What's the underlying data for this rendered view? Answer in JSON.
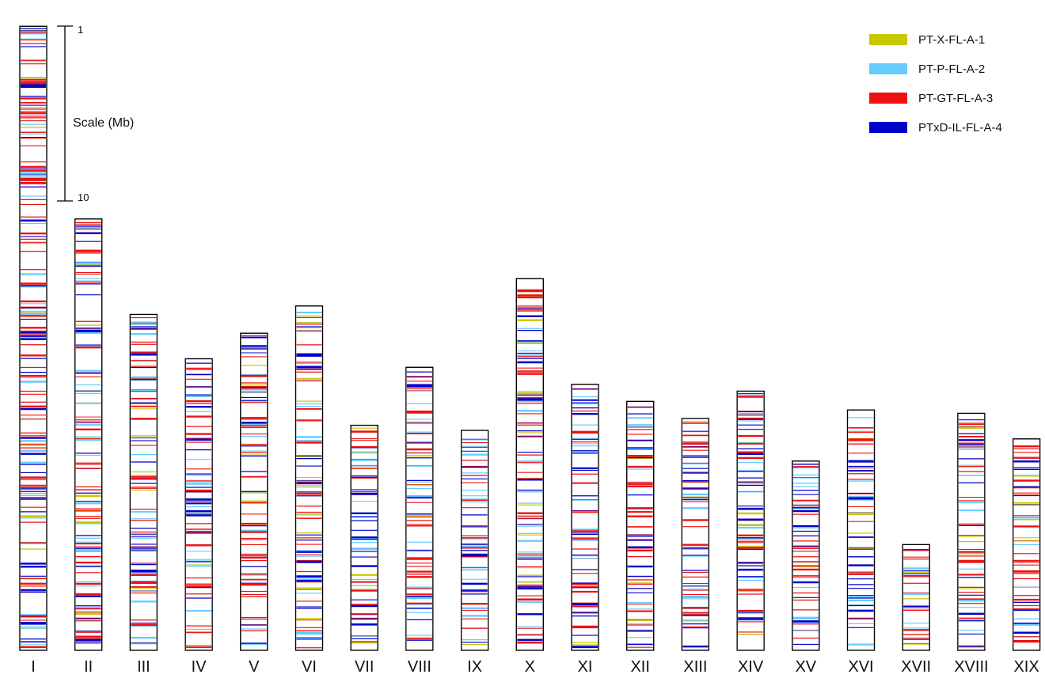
{
  "scale": {
    "top_label": "1",
    "bottom_label": "10",
    "title": "Scale (Mb)"
  },
  "legend": [
    {
      "label": "PT-X-FL-A-1",
      "color": "#c8c800"
    },
    {
      "label": "PT-P-FL-A-2",
      "color": "#66ccff"
    },
    {
      "label": "PT-GT-FL-A-3",
      "color": "#ee1111"
    },
    {
      "label": "PTxD-IL-FL-A-4",
      "color": "#0000cc"
    }
  ],
  "chromosomes": [
    {
      "name": "I",
      "length_mb": 36.6
    },
    {
      "name": "II",
      "length_mb": 25.3
    },
    {
      "name": "III",
      "length_mb": 19.7
    },
    {
      "name": "IV",
      "length_mb": 17.1
    },
    {
      "name": "V",
      "length_mb": 18.6
    },
    {
      "name": "VI",
      "length_mb": 20.2
    },
    {
      "name": "VII",
      "length_mb": 13.2
    },
    {
      "name": "VIII",
      "length_mb": 16.6
    },
    {
      "name": "IX",
      "length_mb": 12.9
    },
    {
      "name": "X",
      "length_mb": 21.8
    },
    {
      "name": "XI",
      "length_mb": 15.6
    },
    {
      "name": "XII",
      "length_mb": 14.6
    },
    {
      "name": "XIII",
      "length_mb": 13.6
    },
    {
      "name": "XIV",
      "length_mb": 15.2
    },
    {
      "name": "XV",
      "length_mb": 11.1
    },
    {
      "name": "XVI",
      "length_mb": 14.1
    },
    {
      "name": "XVII",
      "length_mb": 6.2
    },
    {
      "name": "XVIII",
      "length_mb": 13.9
    },
    {
      "name": "XIX",
      "length_mb": 12.4
    }
  ]
}
